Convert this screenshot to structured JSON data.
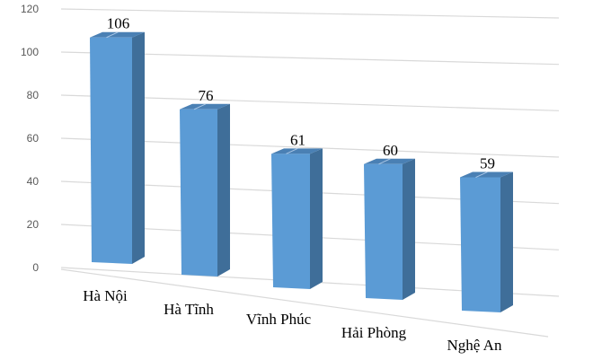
{
  "chart_data": {
    "type": "bar",
    "style": "3d-column",
    "title": "",
    "xlabel": "",
    "ylabel": "",
    "categories": [
      "Hà Nội",
      "Hà Tĩnh",
      "Vĩnh Phúc",
      "Hải Phòng",
      "Nghệ An"
    ],
    "values": [
      106,
      76,
      61,
      60,
      59
    ],
    "data_labels": [
      "106",
      "76",
      "61",
      "60",
      "59"
    ],
    "ylim": [
      0,
      120
    ],
    "yticks": [
      0,
      20,
      40,
      60,
      80,
      100,
      120
    ],
    "ytick_labels": [
      "0",
      "20",
      "40",
      "60",
      "80",
      "100",
      "120"
    ],
    "grid": true,
    "legend": null,
    "colors": {
      "front": "#5b9bd5",
      "side": "#3f6e99",
      "top": "#4a80b4",
      "grid": "#d9d9d9"
    }
  }
}
